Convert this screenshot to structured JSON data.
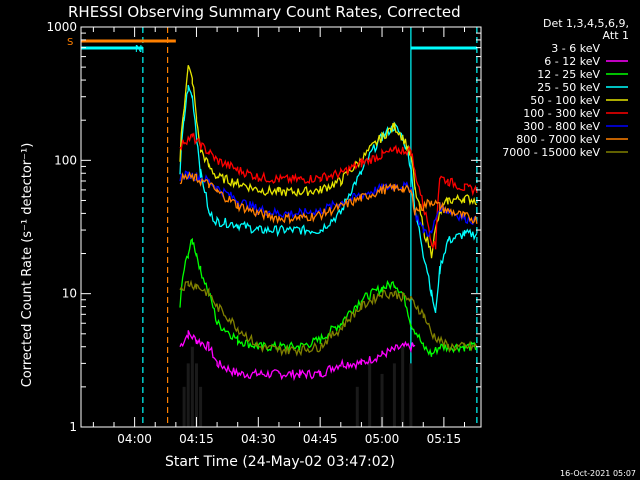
{
  "chart_data": {
    "type": "line",
    "title": "RHESSI Observing Summary Count Rates, Corrected",
    "ylabel": "Corrected Count Rate (s⁻¹ detector⁻¹)",
    "xlabel": "Start Time (24-May-02 03:47:02)",
    "yscale": "log",
    "ylim": [
      1,
      1000
    ],
    "xlim": [
      "03:47",
      "05:24"
    ],
    "y_ticks": [
      "1",
      "10",
      "100",
      "1000"
    ],
    "x_ticks": [
      "04:00",
      "04:15",
      "04:30",
      "04:45",
      "05:00",
      "05:15"
    ],
    "detector_info": [
      "Det 1,3,4,5,6,9,",
      "Att 1"
    ],
    "timestamp": "16-Oct-2021 05:07",
    "flags": [
      {
        "label": "S",
        "color": "#ff8000",
        "start": "03:47",
        "end": "04:10"
      },
      {
        "label": "N",
        "color": "#00ffff",
        "start": "03:47",
        "end": "04:02"
      },
      {
        "label": "",
        "color": "#00ffff",
        "start": "05:07",
        "end": "05:23"
      }
    ],
    "markers": [
      {
        "time": "04:02",
        "color": "#00ffff",
        "style": "dashed"
      },
      {
        "time": "04:08",
        "color": "#ff8000",
        "style": "dashed"
      },
      {
        "time": "05:07",
        "color": "#00ffff",
        "style": "solid"
      },
      {
        "time": "05:23",
        "color": "#00ffff",
        "style": "dashed"
      }
    ],
    "series": [
      {
        "name": "3 - 6 keV",
        "color": "#000000",
        "points": [
          [
            "04:11",
            0
          ],
          [
            "04:12",
            2
          ],
          [
            "04:13",
            3
          ],
          [
            "04:14",
            4
          ],
          [
            "04:15",
            3
          ],
          [
            "04:16",
            2
          ],
          [
            "04:17",
            0
          ],
          [
            "04:53",
            0
          ],
          [
            "04:54",
            2
          ],
          [
            "04:57",
            3
          ],
          [
            "05:00",
            2.5
          ],
          [
            "05:03",
            3
          ],
          [
            "05:05",
            4
          ],
          [
            "05:07",
            3
          ],
          [
            "05:08",
            0
          ]
        ]
      },
      {
        "name": "6 - 12 keV",
        "color": "#ff00ff",
        "points": [
          [
            "04:11",
            4
          ],
          [
            "04:13",
            5
          ],
          [
            "04:15",
            4.5
          ],
          [
            "04:18",
            4
          ],
          [
            "04:20",
            3
          ],
          [
            "04:25",
            2.5
          ],
          [
            "04:30",
            2.5
          ],
          [
            "04:35",
            2.5
          ],
          [
            "04:40",
            2.5
          ],
          [
            "04:45",
            2.5
          ],
          [
            "04:50",
            3
          ],
          [
            "04:55",
            3
          ],
          [
            "05:00",
            3.5
          ],
          [
            "05:05",
            4
          ],
          [
            "05:08",
            4
          ]
        ]
      },
      {
        "name": "12 - 25 keV",
        "color": "#00ff00",
        "points": [
          [
            "04:11",
            8
          ],
          [
            "04:12",
            15
          ],
          [
            "04:13",
            20
          ],
          [
            "04:14",
            25
          ],
          [
            "04:15",
            20
          ],
          [
            "04:16",
            15
          ],
          [
            "04:18",
            10
          ],
          [
            "04:20",
            6
          ],
          [
            "04:25",
            4.5
          ],
          [
            "04:30",
            4
          ],
          [
            "04:35",
            4
          ],
          [
            "04:40",
            4
          ],
          [
            "04:45",
            4.5
          ],
          [
            "04:50",
            6
          ],
          [
            "04:55",
            9
          ],
          [
            "05:00",
            11
          ],
          [
            "05:03",
            12
          ],
          [
            "05:05",
            10
          ],
          [
            "05:07",
            6
          ],
          [
            "05:10",
            4
          ],
          [
            "05:12",
            3.5
          ],
          [
            "05:14",
            4
          ],
          [
            "05:16",
            4
          ],
          [
            "05:20",
            4
          ],
          [
            "05:23",
            4
          ]
        ]
      },
      {
        "name": "25 - 50 keV",
        "color": "#00ffff",
        "points": [
          [
            "04:11",
            80
          ],
          [
            "04:12",
            200
          ],
          [
            "04:13",
            350
          ],
          [
            "04:14",
            300
          ],
          [
            "04:15",
            150
          ],
          [
            "04:16",
            80
          ],
          [
            "04:18",
            40
          ],
          [
            "04:20",
            35
          ],
          [
            "04:25",
            33
          ],
          [
            "04:30",
            30
          ],
          [
            "04:35",
            30
          ],
          [
            "04:40",
            30
          ],
          [
            "04:45",
            30
          ],
          [
            "04:50",
            40
          ],
          [
            "04:55",
            80
          ],
          [
            "05:00",
            150
          ],
          [
            "05:03",
            180
          ],
          [
            "05:05",
            150
          ],
          [
            "05:07",
            90
          ],
          [
            "05:08",
            40
          ],
          [
            "05:10",
            20
          ],
          [
            "05:12",
            10
          ],
          [
            "05:13",
            7
          ],
          [
            "05:14",
            15
          ],
          [
            "05:16",
            25
          ],
          [
            "05:20",
            28
          ],
          [
            "05:23",
            28
          ]
        ]
      },
      {
        "name": "50 - 100 keV",
        "color": "#e6e600",
        "points": [
          [
            "04:11",
            100
          ],
          [
            "04:12",
            250
          ],
          [
            "04:13",
            500
          ],
          [
            "04:14",
            400
          ],
          [
            "04:15",
            200
          ],
          [
            "04:16",
            120
          ],
          [
            "04:18",
            90
          ],
          [
            "04:20",
            75
          ],
          [
            "04:25",
            68
          ],
          [
            "04:30",
            60
          ],
          [
            "04:35",
            58
          ],
          [
            "04:40",
            58
          ],
          [
            "04:45",
            60
          ],
          [
            "04:50",
            70
          ],
          [
            "04:55",
            100
          ],
          [
            "05:00",
            150
          ],
          [
            "05:03",
            180
          ],
          [
            "05:05",
            150
          ],
          [
            "05:07",
            110
          ],
          [
            "05:08",
            60
          ],
          [
            "05:10",
            30
          ],
          [
            "05:12",
            20
          ],
          [
            "05:14",
            40
          ],
          [
            "05:16",
            50
          ],
          [
            "05:20",
            52
          ],
          [
            "05:23",
            50
          ]
        ]
      },
      {
        "name": "100 - 300 keV",
        "color": "#ff0000",
        "points": [
          [
            "04:11",
            120
          ],
          [
            "04:12",
            140
          ],
          [
            "04:14",
            150
          ],
          [
            "04:16",
            130
          ],
          [
            "04:18",
            115
          ],
          [
            "04:20",
            100
          ],
          [
            "04:25",
            85
          ],
          [
            "04:30",
            75
          ],
          [
            "04:35",
            72
          ],
          [
            "04:40",
            72
          ],
          [
            "04:45",
            74
          ],
          [
            "04:50",
            80
          ],
          [
            "04:55",
            95
          ],
          [
            "05:00",
            110
          ],
          [
            "05:03",
            118
          ],
          [
            "05:05",
            120
          ],
          [
            "05:07",
            118
          ],
          [
            "05:08",
            80
          ],
          [
            "05:10",
            45
          ],
          [
            "05:12",
            25
          ],
          [
            "05:13",
            22
          ],
          [
            "05:14",
            75
          ],
          [
            "05:16",
            70
          ],
          [
            "05:20",
            62
          ],
          [
            "05:23",
            60
          ]
        ]
      },
      {
        "name": "300 - 800 keV",
        "color": "#0000ff",
        "points": [
          [
            "04:11",
            75
          ],
          [
            "04:13",
            78
          ],
          [
            "04:15",
            76
          ],
          [
            "04:18",
            70
          ],
          [
            "04:20",
            62
          ],
          [
            "04:25",
            50
          ],
          [
            "04:30",
            43
          ],
          [
            "04:35",
            40
          ],
          [
            "04:40",
            40
          ],
          [
            "04:45",
            42
          ],
          [
            "04:50",
            48
          ],
          [
            "04:55",
            55
          ],
          [
            "05:00",
            62
          ],
          [
            "05:03",
            64
          ],
          [
            "05:05",
            64
          ],
          [
            "05:07",
            62
          ],
          [
            "05:08",
            40
          ],
          [
            "05:10",
            30
          ],
          [
            "05:12",
            28
          ],
          [
            "05:14",
            45
          ],
          [
            "05:16",
            42
          ],
          [
            "05:20",
            37
          ],
          [
            "05:23",
            35
          ]
        ]
      },
      {
        "name": "800 - 7000 keV",
        "color": "#ff8000",
        "points": [
          [
            "04:11",
            72
          ],
          [
            "04:13",
            75
          ],
          [
            "04:15",
            73
          ],
          [
            "04:18",
            66
          ],
          [
            "04:20",
            58
          ],
          [
            "04:25",
            46
          ],
          [
            "04:30",
            40
          ],
          [
            "04:35",
            37
          ],
          [
            "04:40",
            37
          ],
          [
            "04:45",
            39
          ],
          [
            "04:50",
            45
          ],
          [
            "04:55",
            52
          ],
          [
            "05:00",
            60
          ],
          [
            "05:03",
            62
          ],
          [
            "05:05",
            62
          ],
          [
            "05:07",
            58
          ],
          [
            "05:08",
            42
          ],
          [
            "05:10",
            45
          ],
          [
            "05:12",
            50
          ],
          [
            "05:14",
            45
          ],
          [
            "05:16",
            42
          ],
          [
            "05:20",
            38
          ],
          [
            "05:23",
            36
          ]
        ]
      },
      {
        "name": "7000 - 15000 keV",
        "color": "#808000",
        "points": [
          [
            "04:11",
            11
          ],
          [
            "04:13",
            12
          ],
          [
            "04:15",
            11.5
          ],
          [
            "04:18",
            10
          ],
          [
            "04:20",
            8
          ],
          [
            "04:25",
            5.5
          ],
          [
            "04:30",
            4
          ],
          [
            "04:35",
            3.8
          ],
          [
            "04:40",
            3.8
          ],
          [
            "04:45",
            4
          ],
          [
            "04:50",
            5.5
          ],
          [
            "04:55",
            8
          ],
          [
            "05:00",
            10
          ],
          [
            "05:03",
            10
          ],
          [
            "05:05",
            9.5
          ],
          [
            "05:07",
            9
          ],
          [
            "05:10",
            7
          ],
          [
            "05:12",
            5
          ],
          [
            "05:16",
            4
          ],
          [
            "05:20",
            4
          ],
          [
            "05:23",
            4
          ]
        ]
      }
    ]
  }
}
